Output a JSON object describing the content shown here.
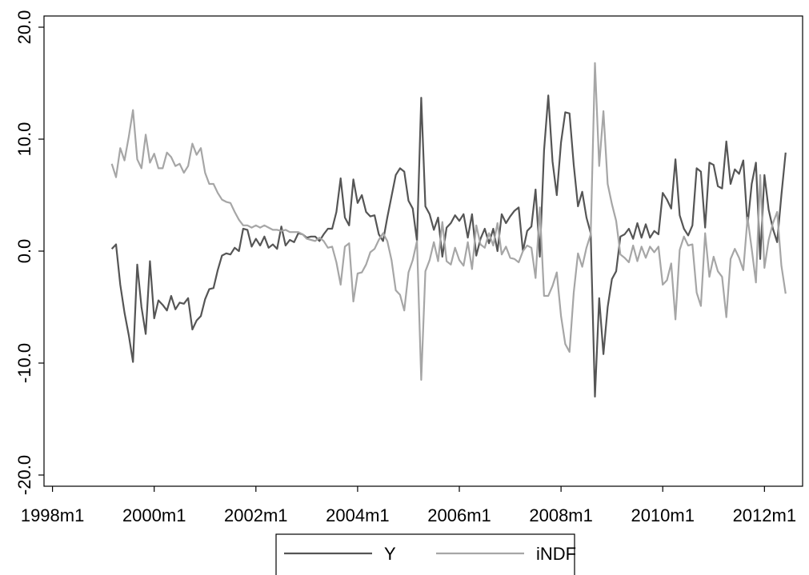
{
  "chart_data": {
    "type": "line",
    "x": [
      "1999m3",
      "1999m4",
      "1999m5",
      "1999m6",
      "1999m7",
      "1999m8",
      "1999m9",
      "1999m10",
      "1999m11",
      "1999m12",
      "2000m1",
      "2000m2",
      "2000m3",
      "2000m4",
      "2000m5",
      "2000m6",
      "2000m7",
      "2000m8",
      "2000m9",
      "2000m10",
      "2000m11",
      "2000m12",
      "2001m1",
      "2001m2",
      "2001m3",
      "2001m4",
      "2001m5",
      "2001m6",
      "2001m7",
      "2001m8",
      "2001m9",
      "2001m10",
      "2001m11",
      "2001m12",
      "2002m1",
      "2002m2",
      "2002m3",
      "2002m4",
      "2002m5",
      "2002m6",
      "2002m7",
      "2002m8",
      "2002m9",
      "2002m10",
      "2002m11",
      "2002m12",
      "2003m1",
      "2003m2",
      "2003m3",
      "2003m4",
      "2003m5",
      "2003m6",
      "2003m7",
      "2003m8",
      "2003m9",
      "2003m10",
      "2003m11",
      "2003m12",
      "2004m1",
      "2004m2",
      "2004m3",
      "2004m4",
      "2004m5",
      "2004m6",
      "2004m7",
      "2004m8",
      "2004m9",
      "2004m10",
      "2004m11",
      "2004m12",
      "2005m1",
      "2005m2",
      "2005m3",
      "2005m4",
      "2005m5",
      "2005m6",
      "2005m7",
      "2005m8",
      "2005m9",
      "2005m10",
      "2005m11",
      "2005m12",
      "2006m1",
      "2006m2",
      "2006m3",
      "2006m4",
      "2006m5",
      "2006m6",
      "2006m7",
      "2006m8",
      "2006m9",
      "2006m10",
      "2006m11",
      "2006m12",
      "2007m1",
      "2007m2",
      "2007m3",
      "2007m4",
      "2007m5",
      "2007m6",
      "2007m7",
      "2007m8",
      "2007m9",
      "2007m10",
      "2007m11",
      "2007m12",
      "2008m1",
      "2008m2",
      "2008m3",
      "2008m4",
      "2008m5",
      "2008m6",
      "2008m7",
      "2008m8",
      "2008m9",
      "2008m10",
      "2008m11",
      "2008m12",
      "2009m1",
      "2009m2",
      "2009m3",
      "2009m4",
      "2009m5",
      "2009m6",
      "2009m7",
      "2009m8",
      "2009m9",
      "2009m10",
      "2009m11",
      "2009m12",
      "2010m1",
      "2010m2",
      "2010m3",
      "2010m4",
      "2010m5",
      "2010m6",
      "2010m7",
      "2010m8",
      "2010m9",
      "2010m10",
      "2010m11",
      "2010m12",
      "2011m1",
      "2011m2",
      "2011m3",
      "2011m4",
      "2011m5",
      "2011m6",
      "2011m7",
      "2011m8",
      "2011m9",
      "2011m10",
      "2011m11",
      "2011m12",
      "2012m1",
      "2012m2",
      "2012m3",
      "2012m4",
      "2012m5",
      "2012m6"
    ],
    "series": [
      {
        "name": "Y",
        "color": "#555555",
        "values": [
          0.2,
          0.6,
          -3,
          -5.5,
          -7.5,
          -9.9,
          -1.2,
          -5,
          -7.4,
          -0.9,
          -6,
          -4.4,
          -4.8,
          -5.3,
          -4,
          -5.2,
          -4.6,
          -4.7,
          -4.2,
          -7,
          -6.2,
          -5.8,
          -4.3,
          -3.4,
          -3.3,
          -1.7,
          -0.4,
          -0.2,
          -0.3,
          0.3,
          0,
          2,
          1.9,
          0.4,
          1.1,
          0.5,
          1.3,
          0.3,
          0.6,
          0.2,
          2.2,
          0.5,
          1,
          0.8,
          1.6,
          1.5,
          1.2,
          1.3,
          1.3,
          0.9,
          1.5,
          2,
          2,
          3.5,
          6.5,
          3,
          2.3,
          6.4,
          4.3,
          5,
          3.5,
          3.1,
          3.2,
          1.5,
          0.9,
          3,
          4.9,
          6.8,
          7.4,
          7.1,
          4.5,
          3.8,
          0.9,
          13.7,
          4,
          3.3,
          1.9,
          3,
          -0.5,
          2.1,
          2.5,
          3.2,
          2.7,
          3.3,
          1.2,
          3.3,
          -0.4,
          1.1,
          2,
          0.7,
          2,
          0,
          3.3,
          2.5,
          3.1,
          3.6,
          3.9,
          0,
          1.8,
          2.2,
          5.5,
          -0.5,
          9,
          13.9,
          8,
          5,
          9.7,
          12.4,
          12.3,
          7.7,
          4,
          5.3,
          3,
          1.6,
          -13,
          -4.2,
          -9.2,
          -5,
          -2.5,
          -1.8,
          1.3,
          1.5,
          2,
          1.1,
          2.5,
          1.2,
          2.4,
          1.2,
          1.8,
          1.5,
          5.2,
          4.6,
          3.8,
          8.2,
          3.2,
          2,
          1.4,
          2.3,
          7.4,
          7.1,
          2.1,
          7.9,
          7.7,
          5.8,
          5.6,
          9.8,
          6,
          7.3,
          6.9,
          8.1,
          2.3,
          6,
          7.9,
          -0.7,
          6.8,
          3.7,
          2,
          0.8,
          5,
          8.8
        ]
      },
      {
        "name": "iNDF",
        "color": "#a6a6a6",
        "values": [
          7.8,
          6.6,
          9.2,
          8.1,
          10.2,
          12.6,
          8.2,
          7.4,
          10.4,
          7.9,
          8.7,
          7.4,
          7.4,
          8.8,
          8.4,
          7.6,
          7.8,
          7,
          7.6,
          9.6,
          8.6,
          9.2,
          7,
          6,
          6,
          5.2,
          4.6,
          4.4,
          4.3,
          3.5,
          2.8,
          2.3,
          2.3,
          2.1,
          2.3,
          2.1,
          2.3,
          2.1,
          1.9,
          1.9,
          1.8,
          1.9,
          1.7,
          1.7,
          1.7,
          1.5,
          1.1,
          1,
          0.9,
          1.2,
          0.9,
          0.3,
          0.4,
          -1,
          -3,
          0.4,
          0.7,
          -4.5,
          -2,
          -1.9,
          -1.2,
          -0.1,
          0.2,
          1,
          1.6,
          0.9,
          -0.8,
          -3.5,
          -3.9,
          -5.3,
          -1.9,
          -0.8,
          0.9,
          -11.5,
          -1.8,
          -0.8,
          0.8,
          -0.9,
          2.6,
          -0.9,
          -1.2,
          0.3,
          -0.8,
          -1.3,
          0.8,
          -1.6,
          2.3,
          0.6,
          0.3,
          1.6,
          0.5,
          2.5,
          -0.3,
          0.4,
          -0.6,
          -0.7,
          -1,
          0,
          0.5,
          0.3,
          -2.4,
          3.9,
          -4,
          -4,
          -3.1,
          -1.9,
          -5.8,
          -8.3,
          -9,
          -3.7,
          -0.2,
          -1.4,
          0.3,
          1.5,
          16.8,
          7.6,
          12.5,
          6,
          4.2,
          2.7,
          -0.3,
          -0.6,
          -1,
          0.5,
          -0.9,
          0.4,
          -0.6,
          0.4,
          -0.1,
          0.4,
          -3,
          -2.6,
          -1.1,
          -6.1,
          0.1,
          1.3,
          0.5,
          0.6,
          -3.7,
          -4.9,
          1.6,
          -2.3,
          -0.5,
          -1.8,
          -2.3,
          -5.9,
          -0.7,
          0.2,
          -0.6,
          -1.7,
          3,
          0.2,
          -2.8,
          6.8,
          -1.5,
          1,
          2.5,
          3.5,
          -1.3,
          -3.8
        ]
      }
    ],
    "xlim": [
      "1997m11",
      "2012m10"
    ],
    "xticks": [
      "1998m1",
      "2000m1",
      "2002m1",
      "2004m1",
      "2006m1",
      "2008m1",
      "2010m1",
      "2012m1"
    ],
    "ylim": [
      -21,
      21
    ],
    "yticks": [
      {
        "value": -20,
        "label": "-20.0"
      },
      {
        "value": -10,
        "label": "-10.0"
      },
      {
        "value": 0,
        "label": "0.0"
      },
      {
        "value": 10,
        "label": "10.0"
      },
      {
        "value": 20,
        "label": "20.0"
      }
    ]
  }
}
